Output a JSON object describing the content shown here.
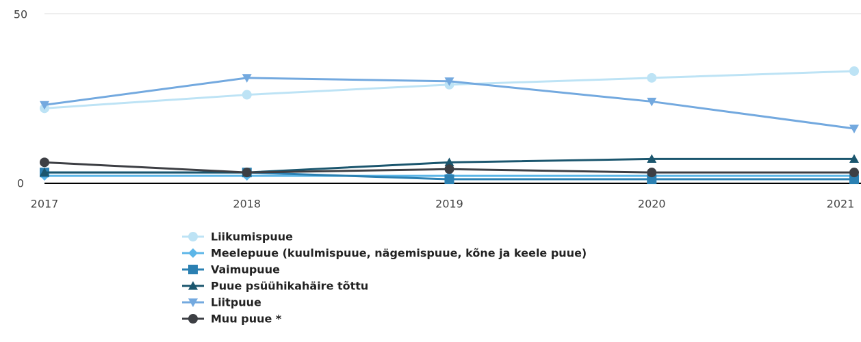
{
  "chart_data": {
    "type": "line",
    "x": [
      "2017",
      "2018",
      "2019",
      "2020",
      "2021"
    ],
    "ylim": [
      0,
      50
    ],
    "yticks": [
      0,
      50
    ],
    "grid": true,
    "series": [
      {
        "name": "Liikumispuue",
        "color": "#bde3f5",
        "marker": "circle",
        "values": [
          22,
          26,
          29,
          31,
          33
        ]
      },
      {
        "name": "Meelepuue (kuulmispuue, nägemispuue, kõne ja keele puue)",
        "color": "#5cb6e8",
        "marker": "diamond",
        "values": [
          2,
          2,
          2,
          2,
          2
        ]
      },
      {
        "name": "Vaimupuue",
        "color": "#2b80b2",
        "marker": "square",
        "values": [
          3,
          3,
          1,
          1,
          1
        ]
      },
      {
        "name": "Puue psüühikahäire tõttu",
        "color": "#1b566e",
        "marker": "triangle-up",
        "values": [
          3,
          3,
          6,
          7,
          7
        ]
      },
      {
        "name": "Liitpuue",
        "color": "#73a9df",
        "marker": "triangle-down",
        "values": [
          23,
          31,
          30,
          24,
          16
        ]
      },
      {
        "name": "Muu puue *",
        "color": "#3d3f44",
        "marker": "circle",
        "values": [
          6,
          3,
          4,
          3,
          3
        ]
      }
    ]
  }
}
